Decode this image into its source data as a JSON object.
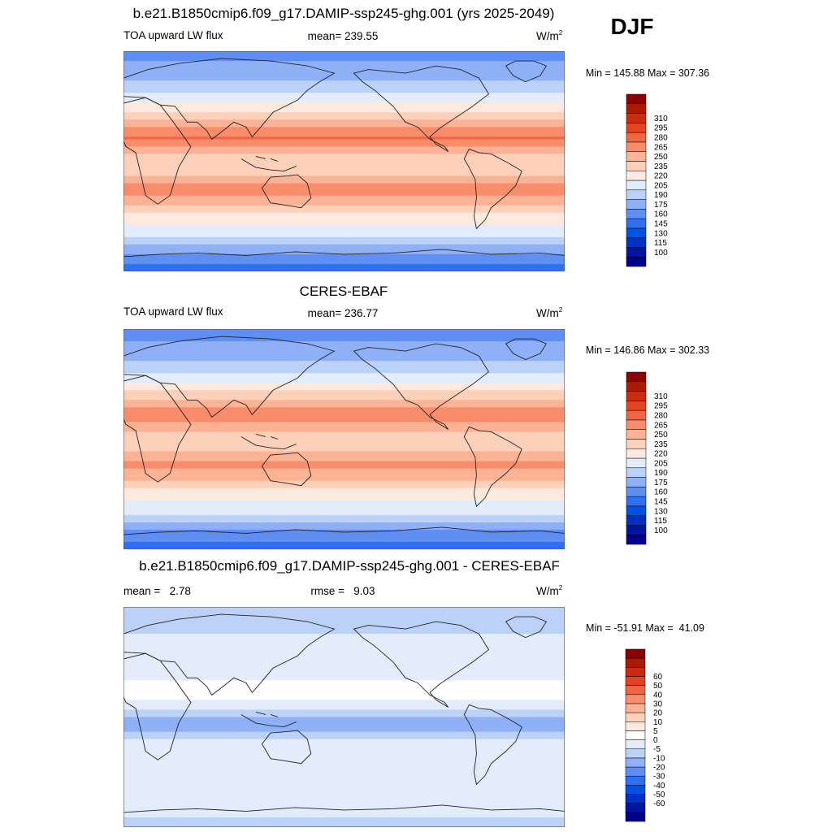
{
  "season": "DJF",
  "colors": {
    "abs_scale": [
      "#00008b",
      "#0014a5",
      "#0031c6",
      "#0053e6",
      "#2f6ff2",
      "#5f8ff4",
      "#8fb0f6",
      "#bcd1f8",
      "#e2ecfb",
      "#fde9de",
      "#fdd0ba",
      "#fcb295",
      "#f98c6b",
      "#f06543",
      "#e3431f",
      "#cd2b0d",
      "#ad1a04",
      "#8b0000"
    ],
    "diff_scale": [
      "#00008b",
      "#0014a5",
      "#0031c6",
      "#0053e6",
      "#2f6ff2",
      "#5f8ff4",
      "#8fb0f6",
      "#bcd1f8",
      "#e2ecfb",
      "#ffffff",
      "#fde9de",
      "#fdd0ba",
      "#fcb295",
      "#f98c6b",
      "#f06543",
      "#e3431f",
      "#cd2b0d",
      "#ad1a04",
      "#8b0000"
    ]
  },
  "panels": [
    {
      "title": "b.e21.B1850cmip6.f09_g17.DAMIP-ssp245-ghg.001 (yrs 2025-2049)",
      "left_label": "TOA upward LW flux",
      "center_label": "mean= 239.55",
      "units_base": "W/m",
      "units_exp": "2",
      "range_label": "Min = 145.88 Max = 307.36"
    },
    {
      "title": "CERES-EBAF",
      "left_label": "TOA upward LW flux",
      "center_label": "mean= 236.77",
      "units_base": "W/m",
      "units_exp": "2",
      "range_label": "Min = 146.86 Max = 302.33"
    },
    {
      "title": "b.e21.B1850cmip6.f09_g17.DAMIP-ssp245-ghg.001 - CERES-EBAF",
      "left_label": "mean =   2.78",
      "center_label": "rmse =   9.03",
      "units_base": "W/m",
      "units_exp": "2",
      "range_label": "Min = -51.91 Max =  41.09"
    }
  ],
  "chart_data": [
    {
      "type": "heatmap",
      "title": "b.e21.B1850cmip6.f09_g17.DAMIP-ssp245-ghg.001 (yrs 2025-2049)",
      "variable": "TOA upward LW flux",
      "units": "W/m2",
      "mean": 239.55,
      "min": 145.88,
      "max": 307.36,
      "colorbar_levels": [
        100,
        115,
        130,
        145,
        160,
        175,
        190,
        205,
        220,
        235,
        250,
        265,
        280,
        295,
        310
      ],
      "zonal_profile": [
        {
          "lat": -90,
          "value": 150
        },
        {
          "lat": -75,
          "value": 175
        },
        {
          "lat": -60,
          "value": 210
        },
        {
          "lat": -45,
          "value": 228
        },
        {
          "lat": -30,
          "value": 262
        },
        {
          "lat": -20,
          "value": 272
        },
        {
          "lat": -10,
          "value": 245
        },
        {
          "lat": 0,
          "value": 235
        },
        {
          "lat": 10,
          "value": 262
        },
        {
          "lat": 20,
          "value": 282
        },
        {
          "lat": 30,
          "value": 258
        },
        {
          "lat": 45,
          "value": 225
        },
        {
          "lat": 60,
          "value": 198
        },
        {
          "lat": 75,
          "value": 180
        },
        {
          "lat": 90,
          "value": 168
        }
      ]
    },
    {
      "type": "heatmap",
      "title": "CERES-EBAF",
      "variable": "TOA upward LW flux",
      "units": "W/m2",
      "mean": 236.77,
      "min": 146.86,
      "max": 302.33,
      "colorbar_levels": [
        100,
        115,
        130,
        145,
        160,
        175,
        190,
        205,
        220,
        235,
        250,
        265,
        280,
        295,
        310
      ],
      "zonal_profile": [
        {
          "lat": -90,
          "value": 152
        },
        {
          "lat": -75,
          "value": 172
        },
        {
          "lat": -60,
          "value": 208
        },
        {
          "lat": -45,
          "value": 226
        },
        {
          "lat": -30,
          "value": 258
        },
        {
          "lat": -20,
          "value": 268
        },
        {
          "lat": -10,
          "value": 250
        },
        {
          "lat": 0,
          "value": 240
        },
        {
          "lat": 10,
          "value": 258
        },
        {
          "lat": 20,
          "value": 278
        },
        {
          "lat": 30,
          "value": 255
        },
        {
          "lat": 45,
          "value": 222
        },
        {
          "lat": 60,
          "value": 195
        },
        {
          "lat": 75,
          "value": 178
        },
        {
          "lat": 90,
          "value": 170
        }
      ]
    },
    {
      "type": "heatmap",
      "title": "b.e21.B1850cmip6.f09_g17.DAMIP-ssp245-ghg.001 - CERES-EBAF",
      "variable": "difference",
      "units": "W/m2",
      "mean": 2.78,
      "rmse": 9.03,
      "min": -51.91,
      "max": 41.09,
      "colorbar_levels": [
        -60,
        -50,
        -40,
        -30,
        -20,
        -10,
        -5,
        0,
        5,
        10,
        20,
        30,
        40,
        50,
        60
      ],
      "zonal_profile": [
        {
          "lat": -90,
          "value": -3
        },
        {
          "lat": -75,
          "value": 2
        },
        {
          "lat": -60,
          "value": 3
        },
        {
          "lat": -45,
          "value": 4
        },
        {
          "lat": -30,
          "value": 5
        },
        {
          "lat": -20,
          "value": 3
        },
        {
          "lat": -10,
          "value": -8
        },
        {
          "lat": 0,
          "value": -6
        },
        {
          "lat": 10,
          "value": 4
        },
        {
          "lat": 20,
          "value": 6
        },
        {
          "lat": 30,
          "value": 5
        },
        {
          "lat": 45,
          "value": 3
        },
        {
          "lat": 60,
          "value": 2
        },
        {
          "lat": 75,
          "value": -2
        },
        {
          "lat": 90,
          "value": -4
        }
      ]
    }
  ]
}
